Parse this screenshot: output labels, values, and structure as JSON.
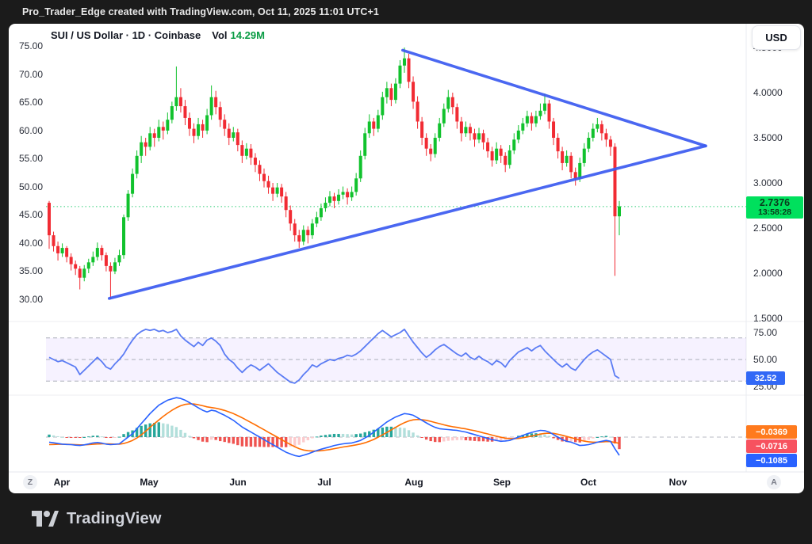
{
  "header": {
    "credit": "Pro_Trader_Edge created with TradingView.com, Oct 11, 2025 11:01 UTC+1"
  },
  "legend": {
    "symbol_line": "SUI / US Dollar · 1D · Coinbase",
    "vol_label": "Vol",
    "vol_value": "14.29M"
  },
  "toolbar": {
    "currency_button": "USD"
  },
  "badges": {
    "price": "2.7376",
    "countdown": "13:58:28",
    "rsi_value": "32.52",
    "macd_signal": "−0.0369",
    "macd_histogram": "−0.0716",
    "macd_line": "−0.1085"
  },
  "buttons": {
    "zoom_reset": "Z",
    "auto_scale": "A"
  },
  "footer": {
    "brand": "TradingView"
  },
  "colors": {
    "candle_up": "#11c22d",
    "candle_down": "#f12b33",
    "trendline": "#3b5bf0",
    "rsi_line": "#5b7cf4",
    "macd_line": "#2962ff",
    "signal_line": "#ff6d00",
    "hist_pos_strong": "#26a69a",
    "hist_pos_weak": "#b2dfdb",
    "hist_neg_strong": "#ef5350",
    "hist_neg_weak": "#fccbcd",
    "current_price_line": "#2ece76",
    "price_badge_bg": "#00e05d",
    "rsi_badge_bg": "#3168f6",
    "macd_badge_orange": "#ff7a1d",
    "macd_badge_red": "#f7525f",
    "macd_badge_blue": "#2962ff",
    "rsi_band_fill": "rgba(124,77,255,0.07)"
  },
  "axes": {
    "left_ticks": [
      "75.00",
      "70.00",
      "65.00",
      "60.00",
      "55.00",
      "50.00",
      "45.00",
      "40.00",
      "35.00",
      "30.00"
    ],
    "left_tick_values": [
      75,
      70,
      65,
      60,
      55,
      50,
      45,
      40,
      35,
      30
    ],
    "right_ticks": [
      "4.5000",
      "4.0000",
      "3.5000",
      "3.0000",
      "2.5000",
      "2.0000",
      "1.5000"
    ],
    "right_tick_values": [
      4.5,
      4.0,
      3.5,
      3.0,
      2.5,
      2.0,
      1.5
    ],
    "rsi_ticks": [
      "75.00",
      "50.00",
      "25.00"
    ],
    "rsi_tick_values": [
      75,
      50,
      25
    ],
    "time_ticks": [
      "Apr",
      "May",
      "Jun",
      "Jul",
      "Aug",
      "Sep",
      "Oct",
      "Nov"
    ]
  },
  "chart_data": {
    "type": "candlestick",
    "title": "SUI / US Dollar",
    "interval": "1D",
    "exchange": "Coinbase",
    "volume_display": "14.29M",
    "price_axis_range": [
      1.5,
      4.6
    ],
    "left_axis_range": [
      30,
      75
    ],
    "current_price": 2.7376,
    "rsi_current": 32.52,
    "macd_current": {
      "macd": -0.1085,
      "signal": -0.0369,
      "histogram": -0.0716
    },
    "rsi_bands": [
      70,
      50,
      30
    ],
    "trendlines": [
      {
        "name": "triangle-upper",
        "from": [
          80.6,
          4.47
        ],
        "to": [
          149.7,
          3.41
        ]
      },
      {
        "name": "triangle-lower",
        "from": [
          13.7,
          1.72
        ],
        "to": [
          149.7,
          3.41
        ]
      }
    ],
    "candles": [
      [
        2.78,
        2.8,
        2.27,
        2.42
      ],
      [
        2.42,
        2.46,
        2.24,
        2.3
      ],
      [
        2.3,
        2.35,
        2.14,
        2.22
      ],
      [
        2.22,
        2.33,
        2.18,
        2.28
      ],
      [
        2.28,
        2.3,
        2.12,
        2.18
      ],
      [
        2.18,
        2.22,
        2.03,
        2.1
      ],
      [
        2.1,
        2.14,
        1.98,
        2.05
      ],
      [
        2.05,
        2.08,
        1.82,
        1.95
      ],
      [
        1.95,
        2.09,
        1.91,
        2.05
      ],
      [
        2.05,
        2.16,
        2.0,
        2.12
      ],
      [
        2.12,
        2.24,
        2.08,
        2.18
      ],
      [
        2.18,
        2.34,
        2.14,
        2.28
      ],
      [
        2.28,
        2.31,
        2.14,
        2.2
      ],
      [
        2.2,
        2.23,
        2.02,
        2.08
      ],
      [
        2.08,
        2.12,
        1.71,
        2.02
      ],
      [
        2.02,
        2.17,
        1.99,
        2.12
      ],
      [
        2.12,
        2.26,
        2.08,
        2.2
      ],
      [
        2.2,
        2.65,
        2.16,
        2.62
      ],
      [
        2.62,
        2.92,
        2.58,
        2.88
      ],
      [
        2.88,
        3.16,
        2.84,
        3.1
      ],
      [
        3.1,
        3.36,
        3.05,
        3.3
      ],
      [
        3.3,
        3.52,
        3.22,
        3.45
      ],
      [
        3.45,
        3.5,
        3.3,
        3.4
      ],
      [
        3.4,
        3.62,
        3.36,
        3.55
      ],
      [
        3.55,
        3.6,
        3.4,
        3.5
      ],
      [
        3.5,
        3.7,
        3.46,
        3.62
      ],
      [
        3.62,
        3.68,
        3.48,
        3.58
      ],
      [
        3.58,
        3.78,
        3.54,
        3.7
      ],
      [
        3.7,
        3.9,
        3.66,
        3.85
      ],
      [
        3.85,
        4.29,
        3.8,
        3.95
      ],
      [
        3.95,
        4.05,
        3.78,
        3.85
      ],
      [
        3.85,
        3.92,
        3.64,
        3.72
      ],
      [
        3.72,
        3.78,
        3.52,
        3.6
      ],
      [
        3.6,
        3.66,
        3.44,
        3.52
      ],
      [
        3.52,
        3.72,
        3.48,
        3.65
      ],
      [
        3.65,
        3.7,
        3.5,
        3.58
      ],
      [
        3.58,
        3.82,
        3.54,
        3.75
      ],
      [
        3.75,
        4.08,
        3.7,
        3.95
      ],
      [
        3.95,
        4.02,
        3.76,
        3.84
      ],
      [
        3.84,
        3.9,
        3.62,
        3.7
      ],
      [
        3.7,
        3.76,
        3.52,
        3.6
      ],
      [
        3.6,
        3.66,
        3.42,
        3.5
      ],
      [
        3.5,
        3.62,
        3.46,
        3.56
      ],
      [
        3.56,
        3.6,
        3.35,
        3.42
      ],
      [
        3.42,
        3.47,
        3.22,
        3.3
      ],
      [
        3.3,
        3.44,
        3.26,
        3.38
      ],
      [
        3.38,
        3.43,
        3.2,
        3.28
      ],
      [
        3.28,
        3.33,
        3.12,
        3.2
      ],
      [
        3.2,
        3.25,
        3.02,
        3.1
      ],
      [
        3.1,
        3.16,
        2.95,
        3.02
      ],
      [
        3.02,
        3.08,
        2.88,
        2.95
      ],
      [
        2.95,
        3.0,
        2.8,
        2.88
      ],
      [
        2.88,
        3.0,
        2.84,
        2.95
      ],
      [
        2.95,
        2.99,
        2.78,
        2.85
      ],
      [
        2.85,
        2.9,
        2.62,
        2.7
      ],
      [
        2.7,
        2.75,
        2.47,
        2.55
      ],
      [
        2.55,
        2.6,
        2.35,
        2.42
      ],
      [
        2.42,
        2.48,
        2.28,
        2.35
      ],
      [
        2.35,
        2.53,
        2.31,
        2.48
      ],
      [
        2.48,
        2.52,
        2.33,
        2.42
      ],
      [
        2.42,
        2.6,
        2.38,
        2.55
      ],
      [
        2.55,
        2.68,
        2.51,
        2.62
      ],
      [
        2.62,
        2.77,
        2.58,
        2.72
      ],
      [
        2.72,
        2.84,
        2.68,
        2.78
      ],
      [
        2.78,
        2.91,
        2.74,
        2.85
      ],
      [
        2.85,
        2.89,
        2.72,
        2.8
      ],
      [
        2.8,
        2.93,
        2.76,
        2.87
      ],
      [
        2.87,
        2.96,
        2.82,
        2.9
      ],
      [
        2.9,
        2.94,
        2.76,
        2.84
      ],
      [
        2.84,
        2.96,
        2.8,
        2.9
      ],
      [
        2.9,
        3.11,
        2.86,
        3.05
      ],
      [
        3.05,
        3.36,
        3.01,
        3.3
      ],
      [
        3.3,
        3.61,
        3.26,
        3.55
      ],
      [
        3.55,
        3.76,
        3.5,
        3.68
      ],
      [
        3.68,
        3.72,
        3.52,
        3.6
      ],
      [
        3.6,
        3.81,
        3.56,
        3.75
      ],
      [
        3.75,
        4.01,
        3.7,
        3.95
      ],
      [
        3.95,
        4.12,
        3.88,
        4.05
      ],
      [
        4.05,
        4.1,
        3.85,
        3.92
      ],
      [
        3.92,
        4.16,
        3.88,
        4.1
      ],
      [
        4.1,
        4.36,
        4.05,
        4.3
      ],
      [
        4.3,
        4.5,
        4.22,
        4.38
      ],
      [
        4.38,
        4.43,
        4.05,
        4.12
      ],
      [
        4.12,
        4.18,
        3.82,
        3.9
      ],
      [
        3.9,
        3.96,
        3.6,
        3.68
      ],
      [
        3.68,
        3.73,
        3.42,
        3.5
      ],
      [
        3.5,
        3.55,
        3.3,
        3.38
      ],
      [
        3.38,
        3.43,
        3.24,
        3.32
      ],
      [
        3.32,
        3.55,
        3.28,
        3.5
      ],
      [
        3.5,
        3.72,
        3.46,
        3.66
      ],
      [
        3.66,
        3.88,
        3.62,
        3.82
      ],
      [
        3.82,
        4.03,
        3.78,
        3.95
      ],
      [
        3.95,
        4.0,
        3.76,
        3.84
      ],
      [
        3.84,
        3.88,
        3.6,
        3.68
      ],
      [
        3.68,
        3.73,
        3.46,
        3.55
      ],
      [
        3.55,
        3.68,
        3.51,
        3.62
      ],
      [
        3.62,
        3.66,
        3.47,
        3.55
      ],
      [
        3.55,
        3.6,
        3.4,
        3.48
      ],
      [
        3.48,
        3.61,
        3.44,
        3.55
      ],
      [
        3.55,
        3.59,
        3.37,
        3.45
      ],
      [
        3.45,
        3.5,
        3.28,
        3.35
      ],
      [
        3.35,
        3.4,
        3.18,
        3.25
      ],
      [
        3.25,
        3.45,
        3.21,
        3.38
      ],
      [
        3.38,
        3.42,
        3.22,
        3.3
      ],
      [
        3.3,
        3.34,
        3.12,
        3.2
      ],
      [
        3.2,
        3.42,
        3.16,
        3.36
      ],
      [
        3.36,
        3.55,
        3.32,
        3.48
      ],
      [
        3.48,
        3.64,
        3.44,
        3.58
      ],
      [
        3.58,
        3.72,
        3.54,
        3.66
      ],
      [
        3.66,
        3.8,
        3.62,
        3.74
      ],
      [
        3.74,
        3.78,
        3.58,
        3.66
      ],
      [
        3.66,
        3.8,
        3.62,
        3.74
      ],
      [
        3.74,
        3.88,
        3.7,
        3.8
      ],
      [
        3.8,
        3.99,
        3.76,
        3.88
      ],
      [
        3.88,
        3.92,
        3.6,
        3.68
      ],
      [
        3.68,
        3.72,
        3.42,
        3.5
      ],
      [
        3.5,
        3.55,
        3.27,
        3.35
      ],
      [
        3.35,
        3.4,
        3.14,
        3.22
      ],
      [
        3.22,
        3.36,
        3.18,
        3.3
      ],
      [
        3.3,
        3.34,
        3.05,
        3.12
      ],
      [
        3.12,
        3.17,
        2.97,
        3.05
      ],
      [
        3.05,
        3.28,
        3.01,
        3.22
      ],
      [
        3.22,
        3.44,
        3.18,
        3.38
      ],
      [
        3.38,
        3.56,
        3.34,
        3.5
      ],
      [
        3.5,
        3.66,
        3.46,
        3.6
      ],
      [
        3.6,
        3.72,
        3.56,
        3.65
      ],
      [
        3.65,
        3.69,
        3.47,
        3.55
      ],
      [
        3.55,
        3.6,
        3.4,
        3.48
      ],
      [
        3.48,
        3.52,
        3.3,
        3.4
      ],
      [
        3.4,
        3.44,
        1.97,
        2.63
      ],
      [
        2.63,
        2.8,
        2.42,
        2.74
      ]
    ],
    "rsi": [
      52,
      50,
      48,
      49,
      47,
      45,
      43,
      36,
      40,
      44,
      48,
      52,
      48,
      43,
      41,
      46,
      50,
      55,
      62,
      68,
      73,
      76,
      78,
      77,
      78,
      76,
      77,
      75,
      76,
      78,
      72,
      68,
      65,
      62,
      66,
      63,
      68,
      70,
      67,
      63,
      55,
      50,
      47,
      42,
      38,
      42,
      45,
      43,
      40,
      43,
      46,
      42,
      38,
      35,
      32,
      29,
      28,
      31,
      36,
      40,
      45,
      43,
      46,
      48,
      50,
      49,
      51,
      52,
      54,
      53,
      55,
      58,
      62,
      66,
      70,
      74,
      77,
      74,
      71,
      73,
      75,
      78,
      72,
      66,
      61,
      56,
      52,
      55,
      59,
      62,
      64,
      61,
      58,
      55,
      53,
      56,
      52,
      50,
      53,
      50,
      48,
      45,
      49,
      47,
      43,
      49,
      53,
      57,
      59,
      61,
      58,
      61,
      63,
      58,
      54,
      50,
      46,
      43,
      46,
      42,
      40,
      45,
      50,
      54,
      57,
      59,
      56,
      53,
      50,
      35,
      32.52
    ],
    "macd": [
      -0.03,
      -0.034,
      -0.038,
      -0.042,
      -0.044,
      -0.045,
      -0.048,
      -0.05,
      -0.046,
      -0.041,
      -0.035,
      -0.032,
      -0.036,
      -0.042,
      -0.045,
      -0.043,
      -0.04,
      -0.02,
      0.0,
      0.02,
      0.05,
      0.08,
      0.11,
      0.14,
      0.165,
      0.19,
      0.205,
      0.22,
      0.228,
      0.235,
      0.23,
      0.22,
      0.205,
      0.19,
      0.175,
      0.16,
      0.15,
      0.16,
      0.155,
      0.142,
      0.13,
      0.115,
      0.1,
      0.08,
      0.06,
      0.045,
      0.03,
      0.015,
      0.0,
      -0.015,
      -0.03,
      -0.045,
      -0.06,
      -0.075,
      -0.09,
      -0.1,
      -0.11,
      -0.115,
      -0.108,
      -0.1,
      -0.09,
      -0.08,
      -0.072,
      -0.065,
      -0.058,
      -0.05,
      -0.045,
      -0.04,
      -0.037,
      -0.035,
      -0.028,
      -0.02,
      -0.005,
      0.01,
      0.03,
      0.05,
      0.07,
      0.09,
      0.105,
      0.12,
      0.13,
      0.14,
      0.137,
      0.13,
      0.115,
      0.1,
      0.085,
      0.07,
      0.058,
      0.05,
      0.047,
      0.045,
      0.042,
      0.04,
      0.035,
      0.03,
      0.022,
      0.015,
      0.007,
      0.0,
      -0.008,
      -0.015,
      -0.02,
      -0.025,
      -0.023,
      -0.02,
      -0.01,
      0.0,
      0.01,
      0.02,
      0.028,
      0.035,
      0.04,
      0.038,
      0.03,
      0.015,
      0.0,
      -0.015,
      -0.025,
      -0.03,
      -0.04,
      -0.05,
      -0.048,
      -0.045,
      -0.038,
      -0.03,
      -0.025,
      -0.02,
      -0.025,
      -0.07,
      -0.1085
    ],
    "macd_signal_series": [
      -0.045,
      -0.044,
      -0.043,
      -0.043,
      -0.043,
      -0.044,
      -0.045,
      -0.046,
      -0.046,
      -0.045,
      -0.043,
      -0.041,
      -0.04,
      -0.04,
      -0.041,
      -0.042,
      -0.042,
      -0.038,
      -0.03,
      -0.02,
      -0.005,
      0.013,
      0.035,
      0.058,
      0.08,
      0.102,
      0.123,
      0.142,
      0.16,
      0.175,
      0.187,
      0.195,
      0.198,
      0.197,
      0.193,
      0.187,
      0.18,
      0.176,
      0.172,
      0.166,
      0.159,
      0.15,
      0.14,
      0.128,
      0.115,
      0.101,
      0.087,
      0.073,
      0.058,
      0.044,
      0.029,
      0.014,
      0.0,
      -0.015,
      -0.03,
      -0.044,
      -0.057,
      -0.069,
      -0.077,
      -0.081,
      -0.083,
      -0.083,
      -0.081,
      -0.078,
      -0.074,
      -0.069,
      -0.064,
      -0.059,
      -0.055,
      -0.051,
      -0.046,
      -0.041,
      -0.034,
      -0.025,
      -0.014,
      -0.001,
      0.013,
      0.028,
      0.043,
      0.058,
      0.073,
      0.086,
      0.096,
      0.103,
      0.105,
      0.104,
      0.1,
      0.094,
      0.087,
      0.08,
      0.073,
      0.067,
      0.062,
      0.058,
      0.053,
      0.049,
      0.043,
      0.038,
      0.032,
      0.025,
      0.019,
      0.012,
      0.005,
      -0.001,
      -0.006,
      -0.009,
      -0.009,
      -0.008,
      -0.004,
      0.001,
      0.006,
      0.012,
      0.018,
      0.022,
      0.023,
      0.022,
      0.017,
      0.011,
      0.004,
      -0.003,
      -0.01,
      -0.018,
      -0.024,
      -0.028,
      -0.03,
      -0.03,
      -0.029,
      -0.027,
      -0.027,
      -0.032,
      -0.0369
    ]
  }
}
